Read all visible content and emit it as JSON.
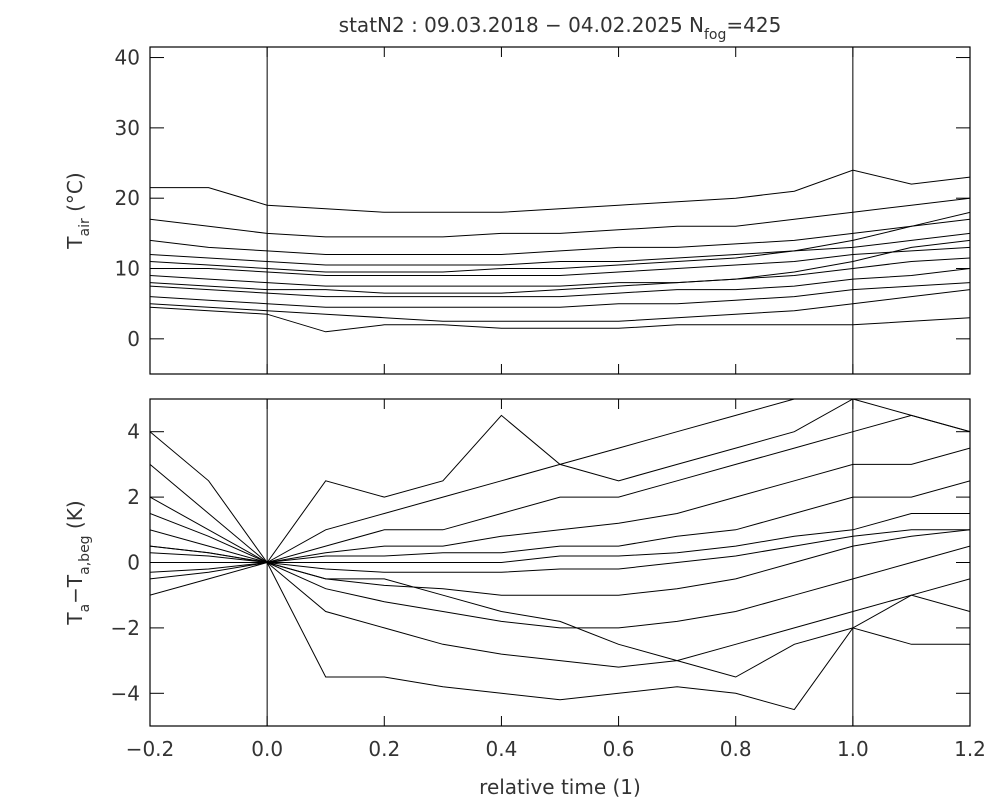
{
  "chart_data": [
    {
      "type": "line",
      "title": [
        {
          "text": "statN2 : 09.03.2018 − 04.02.2025 N"
        },
        {
          "text": "fog",
          "sub": true
        },
        {
          "text": "=425"
        }
      ],
      "ylabel": [
        {
          "text": "T"
        },
        {
          "text": "air",
          "sub": true
        },
        {
          "text": "  (°C)"
        }
      ],
      "line_color": "#000000",
      "xtick_labels": false,
      "xlim": [
        -0.2,
        1.2
      ],
      "xticks": [
        -0.2,
        0,
        0.2,
        0.4,
        0.6,
        0.8,
        1,
        1.2
      ],
      "ylim": [
        -5,
        41.5
      ],
      "yticks": [
        0,
        10,
        20,
        30,
        40
      ],
      "vlines": [
        0,
        1
      ],
      "x": [
        -0.2,
        -0.1,
        0,
        0.1,
        0.2,
        0.3,
        0.4,
        0.5,
        0.6,
        0.7,
        0.8,
        0.9,
        1,
        1.1,
        1.2
      ],
      "series": [
        {
          "values": [
            21.5,
            21.5,
            19,
            18.5,
            18,
            18,
            18,
            18.5,
            19,
            19.5,
            20,
            21,
            24,
            22,
            23
          ]
        },
        {
          "values": [
            17,
            16,
            15,
            14.5,
            14.5,
            14.5,
            15,
            15,
            15.5,
            16,
            16,
            17,
            18,
            19,
            20
          ]
        },
        {
          "values": [
            14,
            13,
            12.5,
            12,
            12,
            12,
            12,
            12.5,
            13,
            13,
            13.5,
            14,
            15,
            16,
            17
          ]
        },
        {
          "values": [
            12,
            11.5,
            11,
            10.5,
            10.5,
            10.5,
            10.5,
            11,
            11,
            11.5,
            12,
            12.5,
            13,
            14,
            15
          ]
        },
        {
          "values": [
            10,
            10,
            9.5,
            9,
            9,
            9,
            9,
            9,
            9.5,
            10,
            10.5,
            11,
            12,
            12.5,
            13
          ]
        },
        {
          "values": [
            9,
            8.5,
            8,
            7.5,
            7.5,
            7.5,
            7.5,
            7.5,
            8,
            8,
            8.5,
            9,
            10,
            11,
            11.5
          ]
        },
        {
          "values": [
            7.5,
            7,
            6.5,
            6,
            6,
            6,
            6,
            6,
            6.5,
            7,
            7,
            7.5,
            8.5,
            9,
            10
          ]
        },
        {
          "values": [
            6,
            5.5,
            5,
            4.5,
            4.5,
            4.5,
            4.5,
            4.5,
            5,
            5,
            5.5,
            6,
            7,
            7.5,
            8
          ]
        },
        {
          "values": [
            5,
            4.5,
            4,
            3.5,
            3,
            2.5,
            2.5,
            2.5,
            2.5,
            3,
            3.5,
            4,
            5,
            6,
            7
          ]
        },
        {
          "values": [
            4.5,
            4,
            3.5,
            1,
            2,
            2,
            1.5,
            1.5,
            1.5,
            2,
            2,
            2,
            2,
            2.5,
            3
          ]
        },
        {
          "values": [
            8,
            7.5,
            7,
            7,
            6.5,
            6.5,
            6.5,
            7,
            7.5,
            8,
            8.5,
            9.5,
            11,
            13,
            14
          ]
        },
        {
          "values": [
            11,
            10.5,
            10,
            9.5,
            9.5,
            9.5,
            10,
            10,
            10.5,
            11,
            11.5,
            12.5,
            14,
            16,
            18
          ]
        }
      ]
    },
    {
      "type": "line",
      "xlabel": "relative time (1)",
      "ylabel": [
        {
          "text": "T"
        },
        {
          "text": "a",
          "sub": true
        },
        {
          "text": "−T"
        },
        {
          "text": "a,beg",
          "sub": true
        },
        {
          "text": "  (K)"
        }
      ],
      "line_color": "#000000",
      "xtick_labels": true,
      "xlim": [
        -0.2,
        1.2
      ],
      "xticks": [
        {
          "value": -0.2,
          "label": "−0.2"
        },
        {
          "value": 0,
          "label": "0.0"
        },
        0.2,
        0.4,
        0.6,
        0.8,
        {
          "value": 1,
          "label": "1.0"
        },
        1.2
      ],
      "ylim": [
        -5,
        5
      ],
      "yticks": [
        {
          "value": -4,
          "label": "−4"
        },
        {
          "value": -2,
          "label": "−2"
        },
        0,
        2,
        4
      ],
      "vlines": [
        0,
        1
      ],
      "x": [
        -0.2,
        -0.1,
        0,
        0.1,
        0.2,
        0.3,
        0.4,
        0.5,
        0.6,
        0.7,
        0.8,
        0.9,
        1,
        1.1,
        1.2
      ],
      "series": [
        {
          "values": [
            4,
            2.5,
            0,
            1,
            1.5,
            2,
            2.5,
            3,
            3.5,
            4,
            4.5,
            5,
            5,
            5,
            5
          ]
        },
        {
          "values": [
            2,
            1,
            0,
            0.5,
            1,
            1,
            1.5,
            2,
            2,
            2.5,
            3,
            3.5,
            4,
            4.5,
            4
          ]
        },
        {
          "values": [
            1,
            0.5,
            0,
            0.3,
            0.5,
            0.5,
            0.8,
            1,
            1.2,
            1.5,
            2,
            2.5,
            3,
            3,
            3.5
          ]
        },
        {
          "values": [
            0.5,
            0.3,
            0,
            0.2,
            0.2,
            0.3,
            0.3,
            0.5,
            0.5,
            0.8,
            1,
            1.5,
            2,
            2,
            2.5
          ]
        },
        {
          "values": [
            0.3,
            0.2,
            0,
            0,
            0,
            0,
            0,
            0.2,
            0.2,
            0.3,
            0.5,
            0.8,
            1,
            1.5,
            1.5
          ]
        },
        {
          "values": [
            0,
            0,
            0,
            -0.2,
            -0.3,
            -0.3,
            -0.3,
            -0.2,
            -0.2,
            0,
            0.2,
            0.5,
            0.8,
            1,
            1
          ]
        },
        {
          "values": [
            -0.3,
            -0.2,
            0,
            -0.5,
            -0.7,
            -0.8,
            -1,
            -1,
            -1,
            -0.8,
            -0.5,
            0,
            0.5,
            0.8,
            1
          ]
        },
        {
          "values": [
            -0.5,
            -0.3,
            0,
            -0.8,
            -1.2,
            -1.5,
            -1.8,
            -2,
            -2,
            -1.8,
            -1.5,
            -1,
            -0.5,
            0,
            0.5
          ]
        },
        {
          "values": [
            -1,
            -0.5,
            0,
            -1.5,
            -2,
            -2.5,
            -2.8,
            -3,
            -3.2,
            -3,
            -2.5,
            -2,
            -1.5,
            -1,
            -1.5
          ]
        },
        {
          "values": [
            0.5,
            0.3,
            0,
            -3.5,
            -3.5,
            -3.8,
            -4,
            -4.2,
            -4,
            -3.8,
            -4,
            -4.5,
            -2,
            -2.5,
            -2.5
          ]
        },
        {
          "values": [
            3,
            1.5,
            0,
            2.5,
            2,
            2.5,
            4.5,
            3,
            2.5,
            3,
            3.5,
            4,
            5,
            4.5,
            4
          ]
        },
        {
          "values": [
            1.5,
            0.8,
            0,
            -0.5,
            -0.5,
            -1,
            -1.5,
            -1.8,
            -2.5,
            -3,
            -3.5,
            -2.5,
            -2,
            -1,
            -0.5
          ]
        }
      ]
    }
  ]
}
